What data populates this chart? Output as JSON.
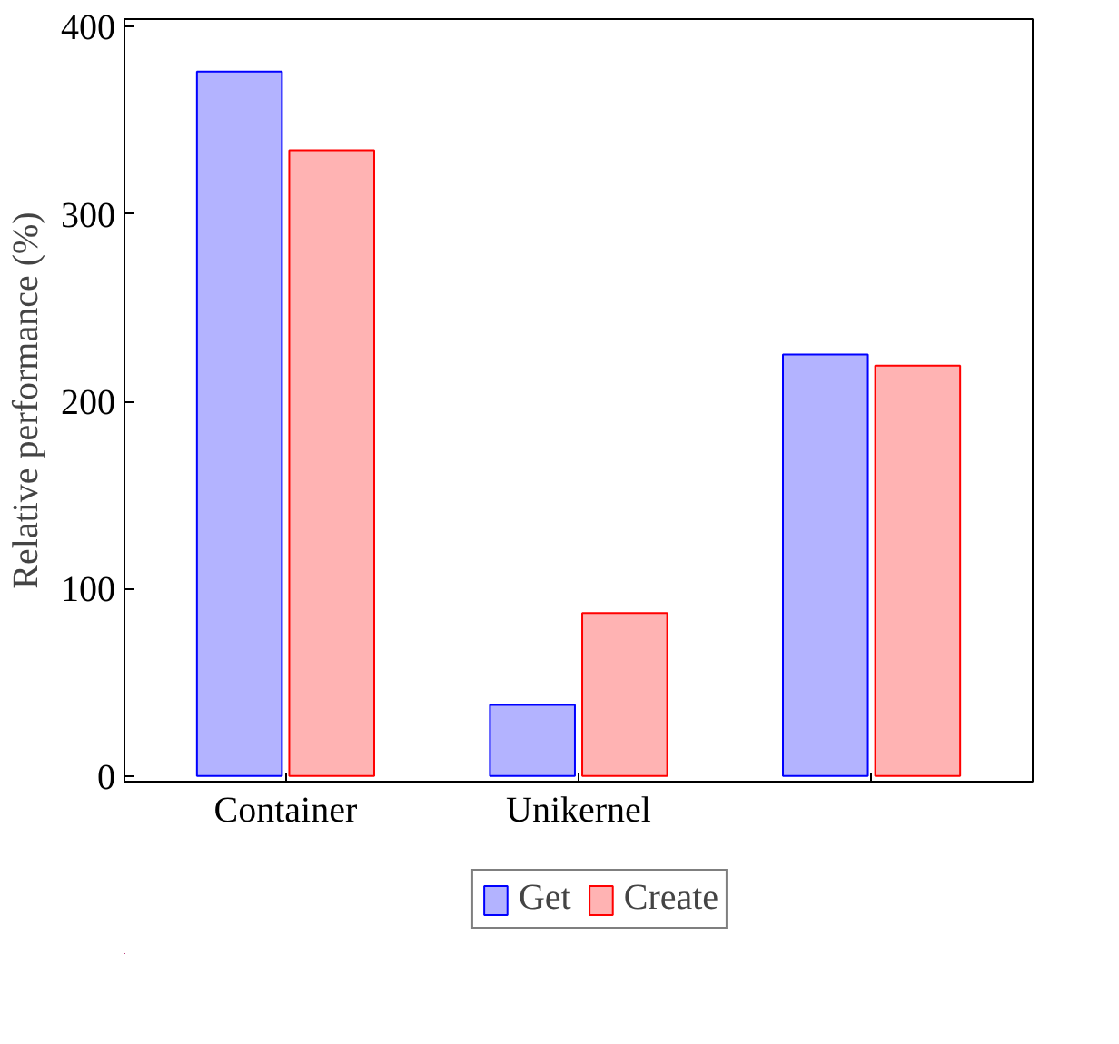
{
  "chart_data": {
    "type": "bar",
    "ylabel": "Relative performance (%)",
    "categories": [
      "Container",
      "Unikernel",
      null
    ],
    "series": [
      {
        "name": "Get",
        "color": "#b3b3ff",
        "values": [
          376,
          38,
          225
        ]
      },
      {
        "name": "Create",
        "color": "#ffb3b3",
        "values": [
          334,
          87,
          219
        ]
      }
    ],
    "ylim": [
      -3,
      404
    ],
    "yticks": [
      0,
      100,
      200,
      300,
      400
    ],
    "grid": false,
    "legend": "bottom"
  }
}
